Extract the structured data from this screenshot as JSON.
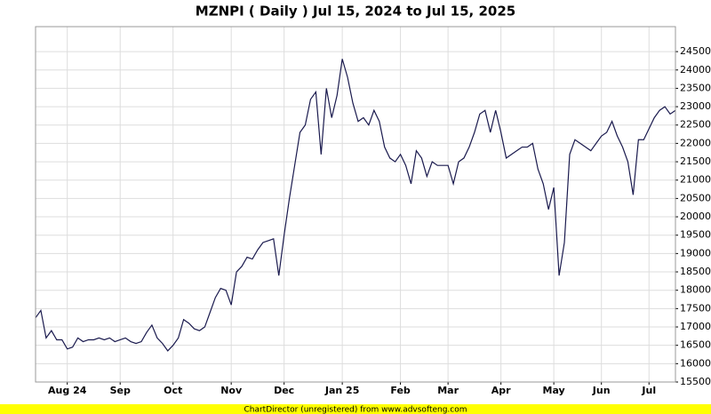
{
  "chart_data": {
    "type": "line",
    "title": "MZNPI ( Daily ) Jul 15, 2024 to Jul 15, 2025",
    "footer": "ChartDirector (unregistered) from www.advsofteng.com",
    "color": "#1a1a4e",
    "grid": true,
    "categories": [
      null,
      null,
      null,
      null,
      null,
      null,
      "Aug 24",
      null,
      null,
      null,
      null,
      null,
      null,
      null,
      null,
      null,
      "Sep",
      null,
      null,
      null,
      null,
      null,
      null,
      null,
      null,
      null,
      "Oct",
      null,
      null,
      null,
      null,
      null,
      null,
      null,
      null,
      null,
      null,
      "Nov",
      null,
      null,
      null,
      null,
      null,
      null,
      null,
      null,
      null,
      "Dec",
      null,
      null,
      null,
      null,
      null,
      null,
      null,
      null,
      null,
      null,
      "Jan 25",
      null,
      null,
      null,
      null,
      null,
      null,
      null,
      null,
      null,
      null,
      "Feb",
      null,
      null,
      null,
      null,
      null,
      null,
      null,
      null,
      "Mar",
      null,
      null,
      null,
      null,
      null,
      null,
      null,
      null,
      null,
      "Apr",
      null,
      null,
      null,
      null,
      null,
      null,
      null,
      null,
      null,
      "May",
      null,
      null,
      null,
      null,
      null,
      null,
      null,
      null,
      "Jun",
      null,
      null,
      null,
      null,
      null,
      null,
      null,
      null,
      "Jul",
      null,
      null,
      null,
      null,
      null
    ],
    "values": [
      17250,
      17450,
      16700,
      16900,
      16650,
      16650,
      16400,
      16450,
      16700,
      16600,
      16650,
      16650,
      16700,
      16650,
      16700,
      16600,
      16650,
      16700,
      16600,
      16550,
      16600,
      16850,
      17050,
      16700,
      16550,
      16350,
      16500,
      16700,
      17200,
      17100,
      16950,
      16900,
      17000,
      17400,
      17800,
      18050,
      18000,
      17600,
      18500,
      18650,
      18900,
      18850,
      19100,
      19300,
      19350,
      19400,
      18400,
      19500,
      20500,
      21400,
      22300,
      22500,
      23200,
      23400,
      21700,
      23500,
      22700,
      23300,
      24300,
      23800,
      23100,
      22600,
      22700,
      22500,
      22900,
      22600,
      21900,
      21600,
      21500,
      21700,
      21400,
      20900,
      21800,
      21600,
      21100,
      21500,
      21400,
      21400,
      21400,
      20900,
      21500,
      21600,
      21900,
      22300,
      22800,
      22900,
      22300,
      22900,
      22300,
      21600,
      21700,
      21800,
      21900,
      21900,
      22000,
      21300,
      20900,
      20200,
      20800,
      18400,
      19300,
      21700,
      22100,
      22000,
      21900,
      21800,
      22000,
      22200,
      22300,
      22600,
      22200,
      21900,
      21500,
      20600,
      22100,
      22100,
      22400,
      22700,
      22900,
      23000,
      22800,
      22900
    ],
    "ylim": [
      15500,
      25180
    ],
    "yticks": [
      15500,
      16000,
      16500,
      17000,
      17500,
      18000,
      18500,
      19000,
      19500,
      20000,
      20500,
      21000,
      21500,
      22000,
      22500,
      23000,
      23500,
      24000,
      24500
    ]
  }
}
